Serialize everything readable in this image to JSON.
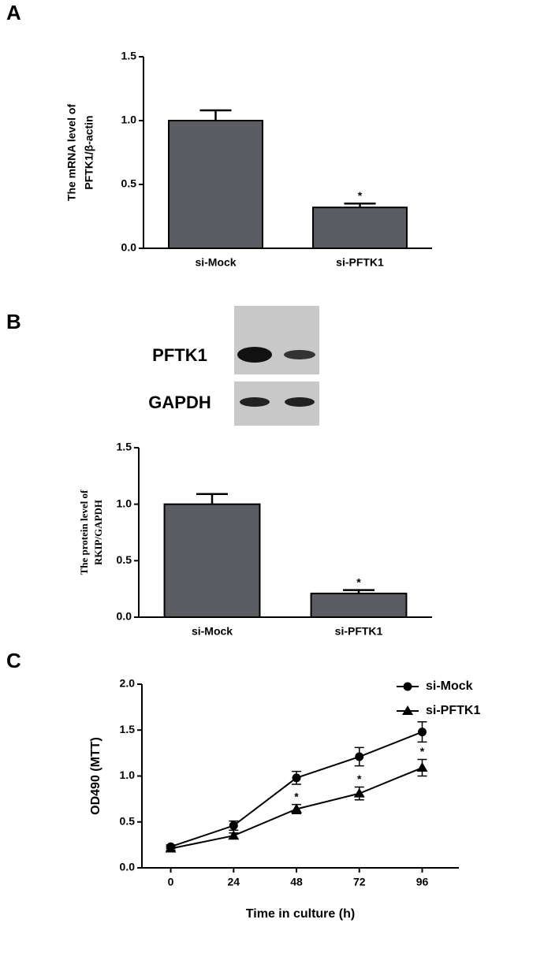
{
  "chart_data": [
    {
      "type": "bar",
      "panel": "A",
      "ylabel": [
        "The mRNA level of",
        "PFTK1/β-actin"
      ],
      "categories": [
        "si-Mock",
        "si-PFTK1"
      ],
      "values": [
        1.0,
        0.32
      ],
      "errors": [
        0.08,
        0.03
      ],
      "annotations": [
        null,
        "*"
      ],
      "color": "#5b5b62",
      "ylim": [
        0,
        1.5
      ],
      "yticks": [
        {
          "value": 0,
          "label": "0.0"
        },
        {
          "value": 0.5,
          "label": "0.5"
        },
        {
          "value": 1,
          "label": "1.0"
        },
        {
          "value": 1.5,
          "label": "1.5"
        }
      ]
    },
    {
      "type": "bar",
      "panel": "B",
      "ylabel": [
        "The protein level of",
        "RKIP/GAPDH"
      ],
      "categories": [
        "si-Mock",
        "si-PFTK1"
      ],
      "values": [
        1.0,
        0.21
      ],
      "errors": [
        0.09,
        0.03
      ],
      "annotations": [
        null,
        "*"
      ],
      "color": "#5b5b62",
      "ylim": [
        0,
        1.5
      ],
      "yticks": [
        {
          "value": 0,
          "label": "0.0"
        },
        {
          "value": 0.5,
          "label": "0.5"
        },
        {
          "value": 1,
          "label": "1.0"
        },
        {
          "value": 1.5,
          "label": "1.5"
        }
      ]
    },
    {
      "type": "line",
      "panel": "C",
      "ylabel": [
        "OD490 (MTT)"
      ],
      "xlabel": "Time in culture (h)",
      "x": [
        0,
        24,
        48,
        72,
        96
      ],
      "xlim": [
        -11,
        110
      ],
      "xticks": [
        0,
        24,
        48,
        72,
        96
      ],
      "ylim": [
        0,
        2
      ],
      "yticks": [
        {
          "value": 0,
          "label": "0.0"
        },
        {
          "value": 0.5,
          "label": "0.5"
        },
        {
          "value": 1,
          "label": "1.0"
        },
        {
          "value": 1.5,
          "label": "1.5"
        },
        {
          "value": 2,
          "label": "2.0"
        }
      ],
      "series": [
        {
          "name": "si-Mock",
          "color": "#000000",
          "marker": "circle",
          "values": [
            0.23,
            0.46,
            0.98,
            1.21,
            1.48
          ],
          "errors": [
            0.02,
            0.05,
            0.07,
            0.1,
            0.11
          ],
          "annotations": [
            null,
            null,
            null,
            null,
            null
          ]
        },
        {
          "name": "si-PFTK1",
          "color": "#000000",
          "marker": "triangle",
          "values": [
            0.21,
            0.35,
            0.64,
            0.81,
            1.09
          ],
          "errors": [
            0.02,
            0.03,
            0.05,
            0.07,
            0.09
          ],
          "annotations": [
            null,
            null,
            "*",
            "*",
            "*"
          ]
        }
      ]
    }
  ],
  "blot": {
    "labels": [
      "PFTK1",
      "GAPDH"
    ]
  }
}
